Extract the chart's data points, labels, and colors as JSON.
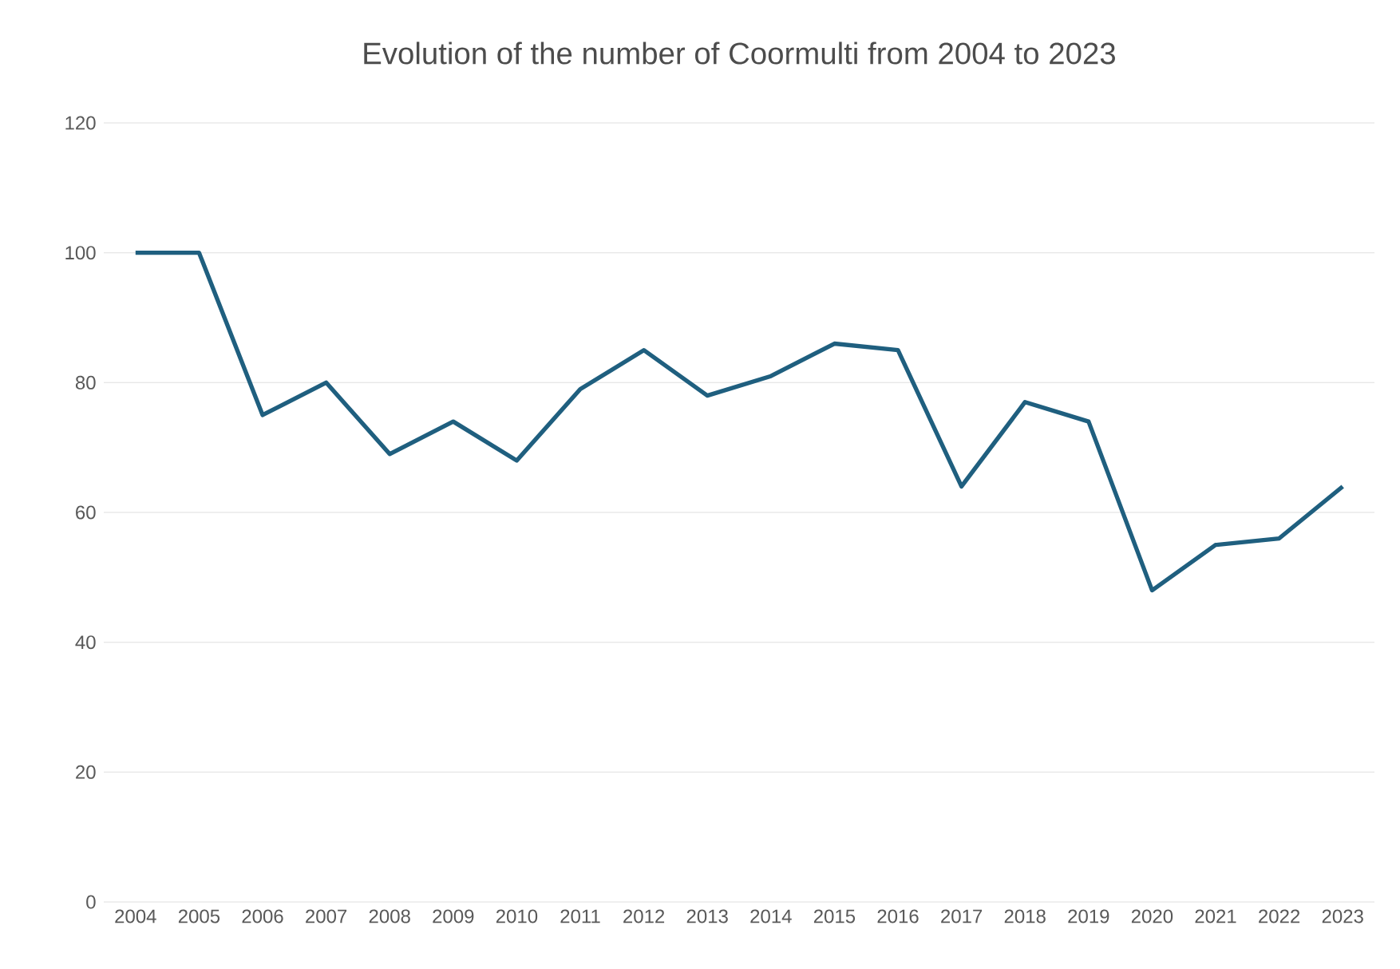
{
  "chart_data": {
    "type": "line",
    "title": "Evolution of the number of Coormulti from 2004 to 2023",
    "categories": [
      "2004",
      "2005",
      "2006",
      "2007",
      "2008",
      "2009",
      "2010",
      "2011",
      "2012",
      "2013",
      "2014",
      "2015",
      "2016",
      "2017",
      "2018",
      "2019",
      "2020",
      "2021",
      "2022",
      "2023"
    ],
    "values": [
      100,
      100,
      75,
      80,
      69,
      74,
      68,
      79,
      85,
      78,
      81,
      86,
      85,
      64,
      77,
      74,
      48,
      55,
      56,
      64
    ],
    "color": "#1f5f7f",
    "ylim": [
      0,
      120
    ],
    "yticks": [
      0,
      20,
      40,
      60,
      80,
      100,
      120
    ],
    "grid": "y",
    "marker": "none",
    "line_style": "solid"
  }
}
